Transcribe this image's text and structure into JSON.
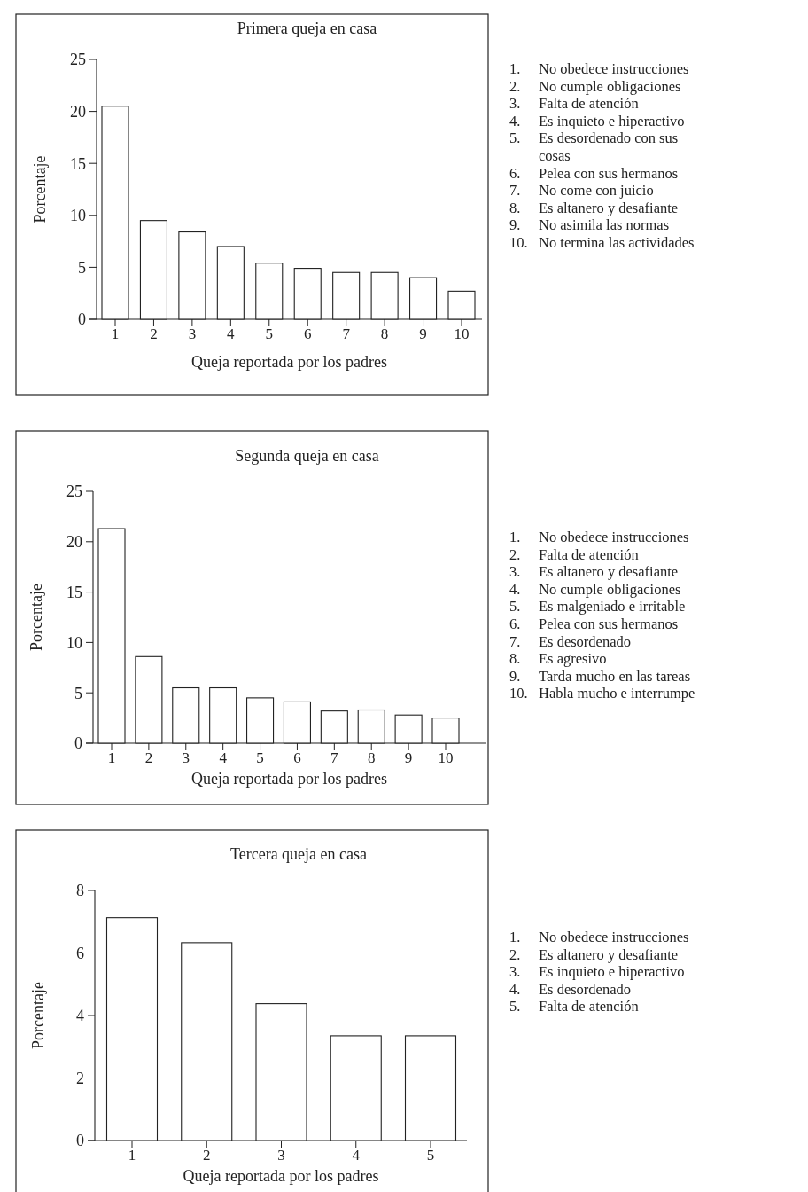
{
  "chart_data": [
    {
      "type": "bar",
      "title": "Primera queja en casa",
      "xlabel": "Queja reportada por los padres",
      "ylabel": "Porcentaje",
      "categories": [
        "1",
        "2",
        "3",
        "4",
        "5",
        "6",
        "7",
        "8",
        "9",
        "10"
      ],
      "values": [
        20.5,
        9.5,
        8.4,
        7.0,
        5.4,
        4.9,
        4.5,
        4.5,
        4.0,
        2.7
      ],
      "color": "#ffffff",
      "ylim": [
        0,
        25
      ],
      "yticks": [
        0,
        5,
        10,
        15,
        20,
        25
      ],
      "annotations": [
        "1. No obedece instrucciones",
        "2. No cumple obligaciones",
        "3. Falta de atención",
        "4. Es inquieto e hiperactivo",
        "5. Es desordenado con sus cosas",
        "6. Pelea con sus hermanos",
        "7. No come con juicio",
        "8. Es altanero y desafiante",
        "9. No asimila las normas",
        "10. No termina las actividades"
      ]
    },
    {
      "type": "bar",
      "title": "Segunda queja en casa",
      "xlabel": "Queja reportada por los padres",
      "ylabel": "Porcentaje",
      "categories": [
        "1",
        "2",
        "3",
        "4",
        "5",
        "6",
        "7",
        "8",
        "9",
        "10"
      ],
      "values": [
        21.3,
        8.6,
        5.5,
        5.5,
        4.5,
        4.1,
        3.2,
        3.3,
        2.8,
        2.5
      ],
      "color": "#ffffff",
      "ylim": [
        0,
        25
      ],
      "yticks": [
        0,
        5,
        10,
        15,
        20,
        25
      ],
      "annotations": [
        "1. No obedece instrucciones",
        "2. Falta de atención",
        "3. Es altanero y desafiante",
        "4. No cumple obligaciones",
        "5. Es malgeniado e irritable",
        "6. Pelea con sus hermanos",
        "7. Es desordenado",
        "8. Es agresivo",
        "9. Tarda mucho en las tareas",
        "10. Habla mucho e interrumpe"
      ]
    },
    {
      "type": "bar",
      "title": "Tercera queja en casa",
      "xlabel": "Queja reportada por los padres",
      "ylabel": "Porcentaje",
      "categories": [
        "1",
        "2",
        "3",
        "4",
        "5"
      ],
      "values": [
        7.13,
        6.33,
        4.38,
        3.35,
        3.35
      ],
      "color": "#ffffff",
      "ylim": [
        0,
        8
      ],
      "yticks": [
        0,
        2,
        4,
        6,
        8
      ],
      "annotations": [
        "1. No obedece instrucciones",
        "2. Es altanero y desafiante",
        "3. Es inquieto e hiperactivo",
        "4. Es desordenado",
        "5. Falta de atención"
      ]
    }
  ]
}
